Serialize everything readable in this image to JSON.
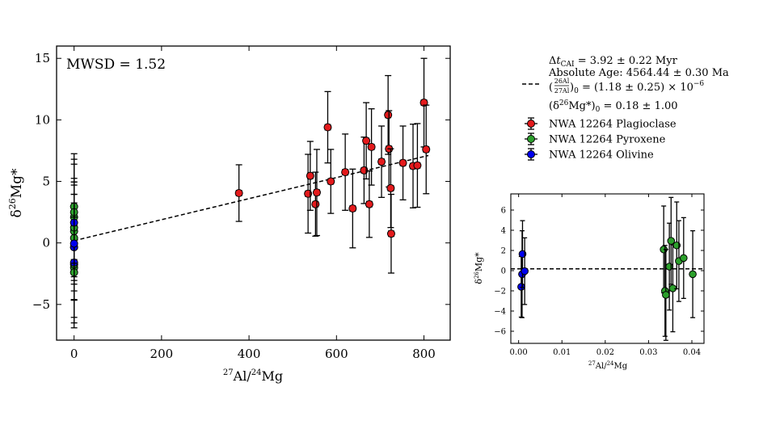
{
  "chart_data": [
    {
      "type": "scatter",
      "xlabel": "27Al/24Mg",
      "ylabel": "δ26Mg*",
      "xlim": [
        -40,
        860
      ],
      "ylim": [
        -7.9,
        16.0
      ],
      "xticks": [
        0,
        200,
        400,
        600,
        800
      ],
      "xtick_labels": [
        "0",
        "200",
        "400",
        "600",
        "800"
      ],
      "yticks": [
        -5,
        0,
        5,
        10,
        15
      ],
      "ytick_labels": [
        "−5",
        "0",
        "5",
        "10",
        "15"
      ],
      "annotation": "MWSD = 1.52",
      "grid": false,
      "legend_position": "outside right",
      "fit_line": {
        "label_lines": [
          "Δt_CAI = 3.92 ± 0.22 Myr",
          "Absolute Age: 4564.44 ± 0.30 Ma",
          "(26Al/27Al)0 = (1.18 ± 0.25) × 10^−6",
          "(δ26Mg*)0 = 0.18 ± 1.00"
        ],
        "intercept": 0.18,
        "slope": 0.00855,
        "x_range": [
          0,
          810
        ]
      },
      "series": [
        {
          "name": "NWA 12264 Plagioclase",
          "color": "#e31a1c",
          "points": [
            {
              "x": 377,
              "y": 4.05,
              "ye": 2.3,
              "xe": 6
            },
            {
              "x": 535,
              "y": 4.0,
              "ye": 3.2,
              "xe": 6
            },
            {
              "x": 540,
              "y": 5.45,
              "ye": 2.8,
              "xe": 6
            },
            {
              "x": 552,
              "y": 3.15,
              "ye": 2.6,
              "xe": 6
            },
            {
              "x": 555,
              "y": 4.1,
              "ye": 3.5,
              "xe": 6
            },
            {
              "x": 580,
              "y": 9.4,
              "ye": 2.9,
              "xe": 6
            },
            {
              "x": 587,
              "y": 5.0,
              "ye": 2.6,
              "xe": 6
            },
            {
              "x": 620,
              "y": 5.75,
              "ye": 3.1,
              "xe": 6
            },
            {
              "x": 637,
              "y": 2.8,
              "ye": 3.2,
              "xe": 6
            },
            {
              "x": 663,
              "y": 5.9,
              "ye": 2.7,
              "xe": 6
            },
            {
              "x": 668,
              "y": 8.3,
              "ye": 3.1,
              "xe": 6
            },
            {
              "x": 675,
              "y": 3.15,
              "ye": 2.7,
              "xe": 6
            },
            {
              "x": 680,
              "y": 7.8,
              "ye": 3.1,
              "xe": 6
            },
            {
              "x": 703,
              "y": 6.6,
              "ye": 2.9,
              "xe": 6
            },
            {
              "x": 718,
              "y": 10.4,
              "ye": 3.2,
              "xe": 6
            },
            {
              "x": 720,
              "y": 7.65,
              "ye": 3.1,
              "xe": 6
            },
            {
              "x": 724,
              "y": 4.45,
              "ye": 3.2,
              "xe": 6
            },
            {
              "x": 725,
              "y": 0.75,
              "ye": 3.2,
              "xe": 6
            },
            {
              "x": 752,
              "y": 6.5,
              "ye": 3.0,
              "xe": 6
            },
            {
              "x": 775,
              "y": 6.25,
              "ye": 3.4,
              "xe": 6
            },
            {
              "x": 785,
              "y": 6.3,
              "ye": 3.4,
              "xe": 6
            },
            {
              "x": 800,
              "y": 11.4,
              "ye": 3.6,
              "xe": 6
            },
            {
              "x": 805,
              "y": 7.6,
              "ye": 3.6,
              "xe": 6
            }
          ]
        },
        {
          "name": "NWA 12264 Pyroxene",
          "color": "#2ca02c",
          "points": [
            {
              "x": 0.0335,
              "y": 2.1,
              "ye": 4.3,
              "xe": 0
            },
            {
              "x": 0.0338,
              "y": -2.0,
              "ye": 4.5,
              "xe": 0
            },
            {
              "x": 0.034,
              "y": -2.4,
              "ye": 4.5,
              "xe": 0
            },
            {
              "x": 0.0348,
              "y": 0.4,
              "ye": 4.3,
              "xe": 0
            },
            {
              "x": 0.0352,
              "y": 2.95,
              "ye": 4.3,
              "xe": 0
            },
            {
              "x": 0.0356,
              "y": -1.75,
              "ye": 4.3,
              "xe": 0
            },
            {
              "x": 0.0365,
              "y": 2.5,
              "ye": 4.3,
              "xe": 0
            },
            {
              "x": 0.037,
              "y": 0.95,
              "ye": 4.0,
              "xe": 0
            },
            {
              "x": 0.0381,
              "y": 1.25,
              "ye": 4.0,
              "xe": 0
            },
            {
              "x": 0.0402,
              "y": -0.35,
              "ye": 4.3,
              "xe": 0
            }
          ]
        },
        {
          "name": "NWA 12264 Olivine",
          "color": "#0000ee",
          "points": [
            {
              "x": 0.0006,
              "y": -1.6,
              "ye": 3.0,
              "xe": 0
            },
            {
              "x": 0.0008,
              "y": -0.35,
              "ye": 4.3,
              "xe": 0
            },
            {
              "x": 0.0009,
              "y": 1.65,
              "ye": 3.3,
              "xe": 0
            },
            {
              "x": 0.0014,
              "y": -0.05,
              "ye": 3.3,
              "xe": 0
            }
          ]
        }
      ]
    },
    {
      "type": "scatter",
      "xlabel": "27Al/24Mg",
      "ylabel": "δ26Mg*",
      "xlim": [
        -0.0018,
        0.0428
      ],
      "ylim": [
        -7.2,
        7.6
      ],
      "xticks": [
        0.0,
        0.01,
        0.02,
        0.03,
        0.04
      ],
      "xtick_labels": [
        "0.00",
        "0.01",
        "0.02",
        "0.03",
        "0.04"
      ],
      "yticks": [
        -6,
        -4,
        -2,
        0,
        2,
        4,
        6
      ],
      "ytick_labels": [
        "−6",
        "−4",
        "−2",
        "0",
        "2",
        "4",
        "6"
      ],
      "grid": false,
      "series_ref": "inset of Pyroxene and Olivine near x = 0"
    }
  ],
  "legend": {
    "entries": [
      {
        "text": "NWA 12264 Plagioclase",
        "color": "#e31a1c"
      },
      {
        "text": "NWA 12264 Pyroxene",
        "color": "#2ca02c"
      },
      {
        "text": "NWA 12264 Olivine",
        "color": "#0000ee"
      }
    ]
  }
}
